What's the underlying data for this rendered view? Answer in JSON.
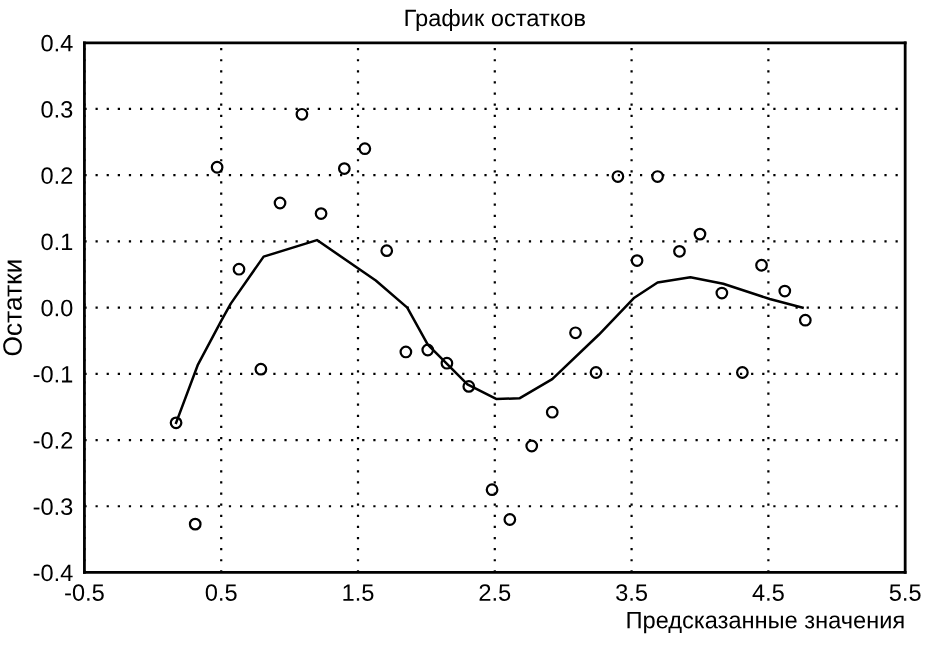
{
  "chart_data": {
    "type": "scatter",
    "title": "График остатков",
    "xlabel": "Предсказанные значения",
    "ylabel": "Остатки",
    "xlim": [
      -0.5,
      5.5
    ],
    "ylim": [
      -0.4,
      0.4
    ],
    "xticks": [
      -0.5,
      0.5,
      1.5,
      2.5,
      3.5,
      4.5,
      5.5
    ],
    "yticks": [
      -0.4,
      -0.3,
      -0.2,
      -0.1,
      {
        "value": 0,
        "label": "0.0"
      },
      0.1,
      0.2,
      0.3,
      0.4
    ],
    "grid": true,
    "legend": false,
    "series": [
      {
        "marker": "circle",
        "color": "#000000",
        "x": [
          1.09,
          1.55,
          0.47,
          1.4,
          0.93,
          1.23,
          1.71,
          0.63,
          3.4,
          3.69,
          4.0,
          3.85,
          3.54,
          4.45,
          4.16,
          4.62,
          4.77,
          3.09,
          3.24,
          4.31,
          2.92,
          2.77,
          2.61,
          0.17,
          0.31,
          0.79,
          1.85,
          2.01,
          2.15,
          2.31,
          2.48
        ],
        "values": [
          0.292,
          0.24,
          0.212,
          0.21,
          0.158,
          0.142,
          0.086,
          0.058,
          0.198,
          0.198,
          0.111,
          0.085,
          0.071,
          0.064,
          0.022,
          0.025,
          -0.019,
          -0.038,
          -0.098,
          -0.098,
          -0.158,
          -0.209,
          -0.32,
          -0.174,
          -0.327,
          -0.093,
          -0.067,
          -0.064,
          -0.084,
          -0.119,
          -0.275
        ]
      },
      {
        "type": "line",
        "marker": "none",
        "line_style": "solid",
        "color": "#000000",
        "x": [
          0.17,
          0.33,
          0.5,
          0.57,
          0.81,
          1.2,
          1.63,
          1.86,
          2.01,
          2.3,
          2.51,
          2.68,
          2.92,
          3.26,
          3.52,
          3.69,
          3.93,
          4.17,
          4.51,
          4.75
        ],
        "values": [
          -0.174,
          -0.086,
          -0.02,
          0.006,
          0.077,
          0.102,
          0.041,
          0.0,
          -0.056,
          -0.116,
          -0.138,
          -0.137,
          -0.108,
          -0.041,
          0.015,
          0.038,
          0.046,
          0.036,
          0.013,
          0.0
        ]
      }
    ]
  }
}
